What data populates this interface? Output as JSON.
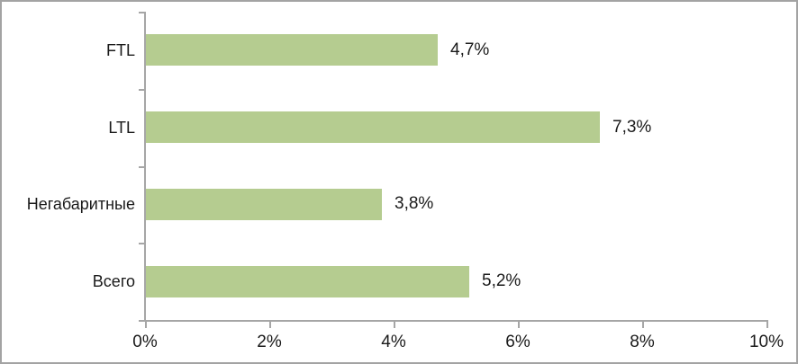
{
  "chart_data": {
    "type": "bar",
    "orientation": "horizontal",
    "title": "",
    "categories": [
      "FTL",
      "LTL",
      "Негабаритные",
      "Всего"
    ],
    "values": [
      4.7,
      7.3,
      3.8,
      5.2
    ],
    "value_labels": [
      "4,7%",
      "7,3%",
      "3,8%",
      "5,2%"
    ],
    "x_tick_labels": [
      "0%",
      "2%",
      "4%",
      "6%",
      "8%",
      "10%"
    ],
    "x_tick_values": [
      0,
      2,
      4,
      6,
      8,
      10
    ],
    "xlim": [
      0,
      10
    ],
    "grid": false,
    "legend": false,
    "bar_color": "#b5cc90",
    "axis_color": "#a6a6a6",
    "text_color": "#1a1a1a",
    "frame_border_color": "#a3a3a3",
    "background_color": "#ffffff"
  }
}
